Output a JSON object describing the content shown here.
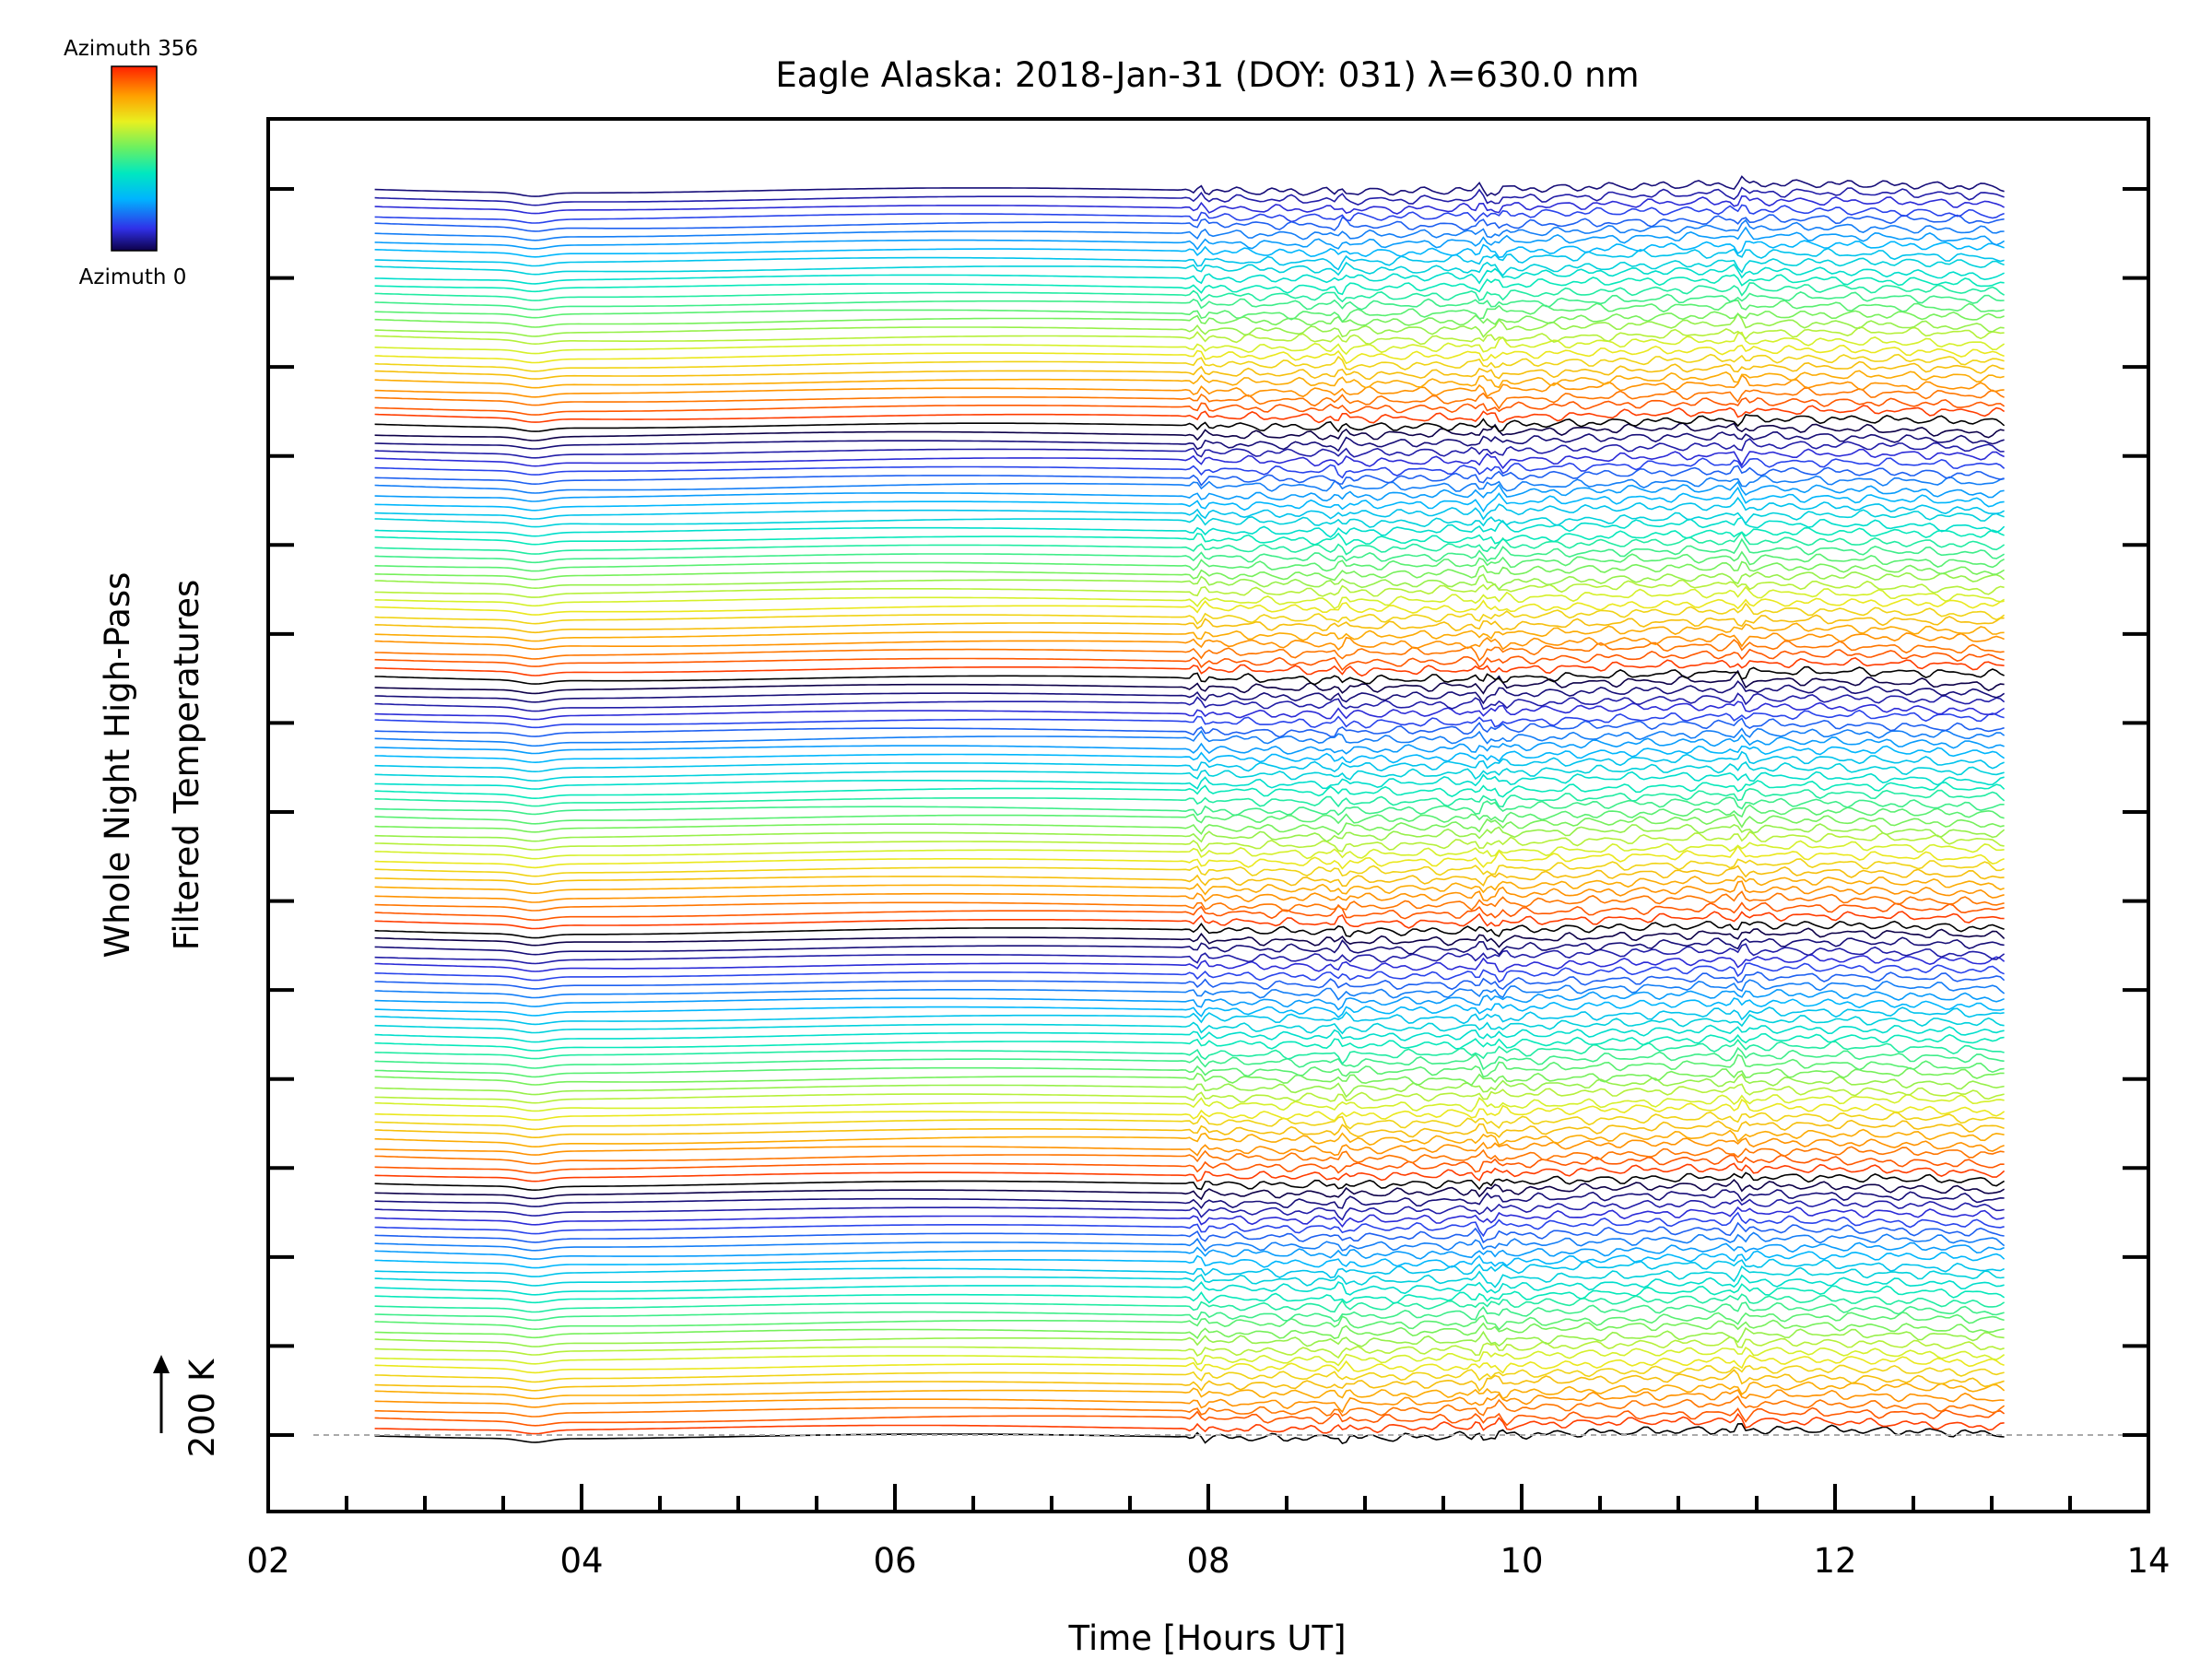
{
  "chart_data": {
    "type": "line",
    "title": "Eagle Alaska: 2018-Jan-31 (DOY: 031) λ=630.0 nm",
    "xlabel": "Time [Hours UT]",
    "ylabel_line1": "Whole Night High-Pass",
    "ylabel_line2": "Filtered Temperatures",
    "xlim": [
      2,
      14
    ],
    "x_ticks": [
      "02",
      "04",
      "06",
      "08",
      "10",
      "12",
      "14"
    ],
    "x_minor_step": 0.5,
    "scale_bar_label": "200 K",
    "grid": false,
    "colorbar": {
      "top_label": "Azimuth 356",
      "bottom_label": "Azimuth 0",
      "range": [
        0,
        356
      ],
      "colormap": "rainbow"
    },
    "n_series": 144,
    "time_range_hours": [
      2.68,
      13.1
    ],
    "disturbance_onset_hours": 7.8,
    "notable_wave_times_hours": [
      7.95,
      8.85,
      9.75,
      9.85,
      11.4
    ],
    "offset_per_series_K": 45,
    "colors": {
      "frame": "#000000",
      "baseline": "#aaaaaa",
      "background": "#ffffff"
    }
  }
}
